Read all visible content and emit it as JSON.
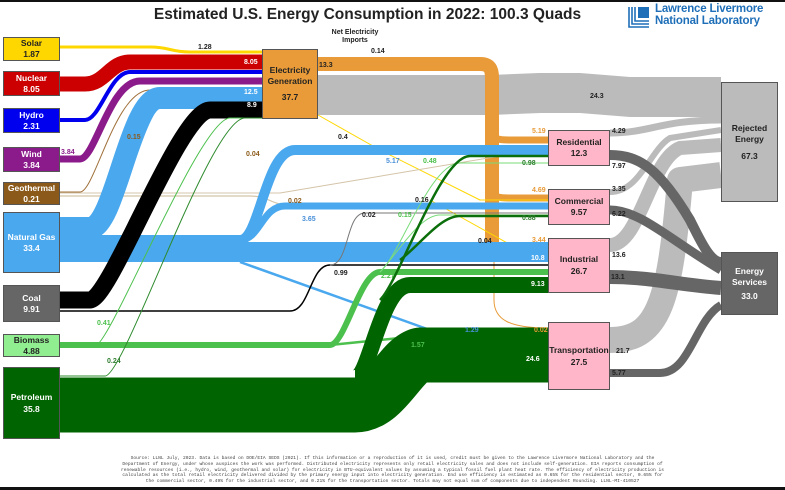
{
  "title": "Estimated U.S. Energy Consumption in 2022: 100.3 Quads",
  "logo": {
    "line1": "Lawrence Livermore",
    "line2": "National Laboratory",
    "color": "#1f6fb8"
  },
  "chart_data": {
    "type": "sankey",
    "title": "Estimated U.S. Energy Consumption in 2022: 100.3 Quads",
    "units": "Quads",
    "sources": [
      {
        "id": "solar",
        "label": "Solar",
        "value": "1.87",
        "color": "#ffd700"
      },
      {
        "id": "nuclear",
        "label": "Nuclear",
        "value": "8.05",
        "color": "#cc0000"
      },
      {
        "id": "hydro",
        "label": "Hydro",
        "value": "2.31",
        "color": "#0000ee"
      },
      {
        "id": "wind",
        "label": "Wind",
        "value": "3.84",
        "color": "#8b1a8b"
      },
      {
        "id": "geothermal",
        "label": "Geothermal",
        "value": "0.21",
        "color": "#8b5a1a"
      },
      {
        "id": "natural_gas",
        "label": "Natural Gas",
        "value": "33.4",
        "color": "#4aa8ee"
      },
      {
        "id": "coal",
        "label": "Coal",
        "value": "9.91",
        "color": "#666666"
      },
      {
        "id": "biomass",
        "label": "Biomass",
        "value": "4.88",
        "color": "#90ee90"
      },
      {
        "id": "petroleum",
        "label": "Petroleum",
        "value": "35.8",
        "color": "#006400"
      }
    ],
    "intermediate": {
      "id": "electricity",
      "label": "Electricity Generation",
      "value": "37.7",
      "color": "#e89b38"
    },
    "imports": {
      "label": "Net Electricity Imports",
      "value": "0.14"
    },
    "sectors": [
      {
        "id": "residential",
        "label": "Residential",
        "value": "12.3",
        "color": "#ffb6c8"
      },
      {
        "id": "commercial",
        "label": "Commercial",
        "value": "9.57",
        "color": "#ffb6c8"
      },
      {
        "id": "industrial",
        "label": "Industrial",
        "value": "26.7",
        "color": "#ffb6c8"
      },
      {
        "id": "transportation",
        "label": "Transportation",
        "value": "27.5",
        "color": "#ffb6c8"
      }
    ],
    "sinks": [
      {
        "id": "rejected",
        "label": "Rejected Energy",
        "value": "67.3",
        "color": "#bbbbbb"
      },
      {
        "id": "services",
        "label": "Energy Services",
        "value": "33.0",
        "color": "#666666"
      }
    ],
    "flows": [
      {
        "from": "solar",
        "to": "electricity",
        "value": "1.28"
      },
      {
        "from": "solar",
        "to": "residential",
        "value": "0.4"
      },
      {
        "from": "solar",
        "to": "commercial",
        "value": "0.16"
      },
      {
        "from": "solar",
        "to": "industrial",
        "value": "0.04"
      },
      {
        "from": "nuclear",
        "to": "electricity",
        "value": "8.05"
      },
      {
        "from": "hydro",
        "to": "electricity",
        "value": "2.31"
      },
      {
        "from": "wind",
        "to": "electricity",
        "value": "3.84"
      },
      {
        "from": "geothermal",
        "to": "electricity",
        "value": "0.15"
      },
      {
        "from": "geothermal",
        "to": "residential",
        "value": "0.04"
      },
      {
        "from": "geothermal",
        "to": "commercial",
        "value": "0.02"
      },
      {
        "from": "natural_gas",
        "to": "electricity",
        "value": "12.5"
      },
      {
        "from": "natural_gas",
        "to": "residential",
        "value": "5.17"
      },
      {
        "from": "natural_gas",
        "to": "commercial",
        "value": "3.65"
      },
      {
        "from": "natural_gas",
        "to": "industrial",
        "value": "10.8"
      },
      {
        "from": "natural_gas",
        "to": "transportation",
        "value": "1.29"
      },
      {
        "from": "coal",
        "to": "electricity",
        "value": "8.9"
      },
      {
        "from": "coal",
        "to": "commercial",
        "value": "0.02"
      },
      {
        "from": "coal",
        "to": "industrial",
        "value": "0.99"
      },
      {
        "from": "biomass",
        "to": "electricity",
        "value": "0.41"
      },
      {
        "from": "biomass",
        "to": "residential",
        "value": "0.48"
      },
      {
        "from": "biomass",
        "to": "commercial",
        "value": "0.15"
      },
      {
        "from": "biomass",
        "to": "industrial",
        "value": "2.27"
      },
      {
        "from": "biomass",
        "to": "transportation",
        "value": "1.57"
      },
      {
        "from": "petroleum",
        "to": "electricity",
        "value": "0.24"
      },
      {
        "from": "petroleum",
        "to": "residential",
        "value": "0.98"
      },
      {
        "from": "petroleum",
        "to": "commercial",
        "value": "0.88"
      },
      {
        "from": "petroleum",
        "to": "industrial",
        "value": "9.13"
      },
      {
        "from": "petroleum",
        "to": "transportation",
        "value": "24.6"
      },
      {
        "from": "electricity",
        "to": "residential",
        "value": "5.19"
      },
      {
        "from": "electricity",
        "to": "commercial",
        "value": "4.69"
      },
      {
        "from": "electricity",
        "to": "industrial",
        "value": "3.44"
      },
      {
        "from": "electricity",
        "to": "transportation",
        "value": "0.02"
      },
      {
        "from": "electricity",
        "to": "rejected",
        "value": "24.3"
      },
      {
        "from": "electricity",
        "to": "sectors",
        "value": "13.3"
      },
      {
        "from": "residential",
        "to": "rejected",
        "value": "4.29"
      },
      {
        "from": "residential",
        "to": "services",
        "value": "7.97"
      },
      {
        "from": "commercial",
        "to": "rejected",
        "value": "3.35"
      },
      {
        "from": "commercial",
        "to": "services",
        "value": "6.22"
      },
      {
        "from": "industrial",
        "to": "rejected",
        "value": "13.6"
      },
      {
        "from": "industrial",
        "to": "services",
        "value": "13.1"
      },
      {
        "from": "transportation",
        "to": "rejected",
        "value": "21.7"
      },
      {
        "from": "transportation",
        "to": "services",
        "value": "5.77"
      }
    ]
  },
  "footer": [
    "Source: LLNL July, 2023. Data is based on DOE/EIA SEDS (2021). If this information or a reproduction of it is used, credit must be given to the Lawrence Livermore National Laboratory and the",
    "Department of Energy, under whose auspices the work was performed. Distributed electricity represents only retail electricity sales and does not include self-generation. EIA reports consumption of",
    "renewable resources (i.e., hydro, wind, geothermal and solar) for electricity in BTU-equivalent values by assuming a typical fossil fuel plant heat rate. The efficiency of electricity production is",
    "calculated as the total retail electricity delivered divided by the primary energy input into electricity generation. End use efficiency is estimated as 0.65% for the residential sector, 0.65% for",
    "the commercial sector, 0.49% for the industrial sector, and 0.21% for the transportation sector. Totals may not equal sum of components due to independent Rounding. LLNL-MI-410527"
  ]
}
